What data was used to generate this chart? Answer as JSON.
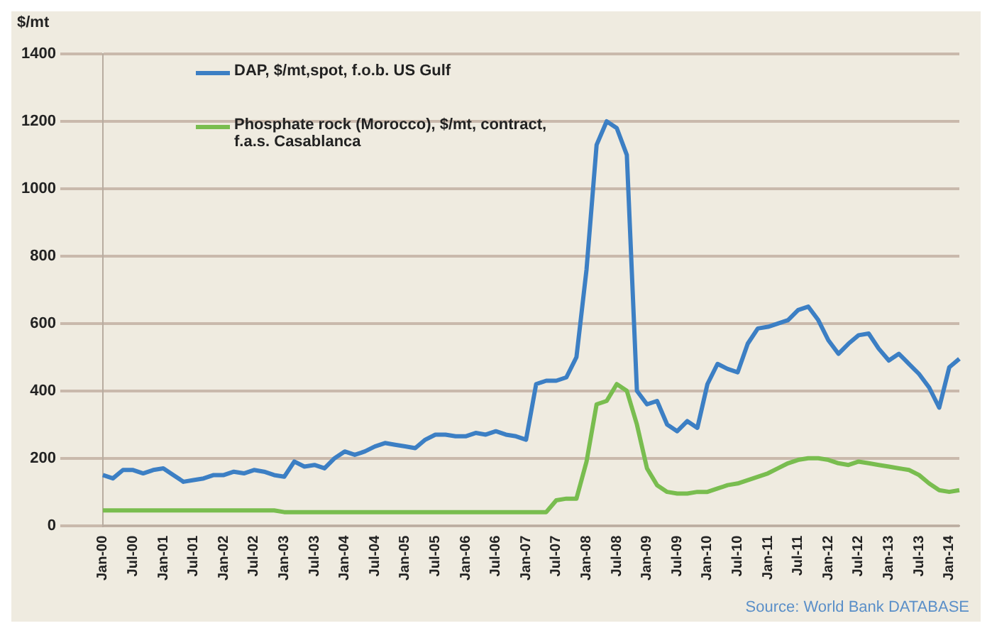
{
  "chart_data": {
    "type": "line",
    "ylabel": "$/mt",
    "annotations": [
      "Source: World Bank DATABASE"
    ],
    "categories": [
      "Jan-00",
      null,
      null,
      "Jul-00",
      null,
      null,
      "Jan-01",
      null,
      null,
      "Jul-01",
      null,
      null,
      "Jan-02",
      null,
      null,
      "Jul-02",
      null,
      null,
      "Jan-03",
      null,
      null,
      "Jul-03",
      null,
      null,
      "Jan-04",
      null,
      null,
      "Jul-04",
      null,
      null,
      "Jan-05",
      null,
      null,
      "Jul-05",
      null,
      null,
      "Jan-06",
      null,
      null,
      "Jul-06",
      null,
      null,
      "Jan-07",
      null,
      null,
      "Jul-07",
      null,
      null,
      "Jan-08",
      null,
      null,
      "Jul-08",
      null,
      null,
      "Jan-09",
      null,
      null,
      "Jul-09",
      null,
      null,
      "Jan-10",
      null,
      null,
      "Jul-10",
      null,
      null,
      "Jan-11",
      null,
      null,
      "Jul-11",
      null,
      null,
      "Jan-12",
      null,
      null,
      "Jul-12",
      null,
      null,
      "Jan-13",
      null,
      null,
      "Jul-13",
      null,
      null,
      "Jan-14",
      null
    ],
    "series": [
      {
        "name": "DAP, $/mt,spot, f.o.b. US Gulf",
        "color": "#3c7fc4",
        "values": [
          150,
          140,
          165,
          165,
          155,
          165,
          170,
          150,
          130,
          135,
          140,
          150,
          150,
          160,
          155,
          165,
          160,
          150,
          145,
          190,
          175,
          180,
          170,
          200,
          220,
          210,
          220,
          235,
          245,
          240,
          235,
          230,
          255,
          270,
          270,
          265,
          265,
          275,
          270,
          280,
          270,
          265,
          255,
          420,
          430,
          430,
          440,
          500,
          760,
          1130,
          1200,
          1180,
          1100,
          400,
          360,
          370,
          300,
          280,
          310,
          290,
          420,
          480,
          465,
          455,
          540,
          585,
          590,
          600,
          610,
          640,
          650,
          610,
          550,
          510,
          540,
          565,
          570,
          525,
          490,
          510,
          480,
          450,
          410,
          350,
          470,
          495
        ]
      },
      {
        "name": "Phosphate rock (Morocco), $/mt, contract, f.a.s. Casablanca",
        "color": "#79bd4f",
        "values": [
          45,
          45,
          45,
          45,
          45,
          45,
          45,
          45,
          45,
          45,
          45,
          45,
          45,
          45,
          45,
          45,
          45,
          45,
          40,
          40,
          40,
          40,
          40,
          40,
          40,
          40,
          40,
          40,
          40,
          40,
          40,
          40,
          40,
          40,
          40,
          40,
          40,
          40,
          40,
          40,
          40,
          40,
          40,
          40,
          40,
          75,
          80,
          80,
          190,
          360,
          370,
          420,
          400,
          300,
          170,
          120,
          100,
          95,
          95,
          100,
          100,
          110,
          120,
          125,
          135,
          145,
          155,
          170,
          185,
          195,
          200,
          200,
          195,
          185,
          180,
          190,
          185,
          180,
          175,
          170,
          165,
          150,
          125,
          105,
          100,
          105
        ]
      }
    ],
    "ylim": [
      0,
      1400
    ],
    "yticks": [
      0,
      200,
      400,
      600,
      800,
      1000,
      1200,
      1400
    ],
    "grid": "y",
    "legend": "top left",
    "marker": "none",
    "line_style": "solid"
  }
}
